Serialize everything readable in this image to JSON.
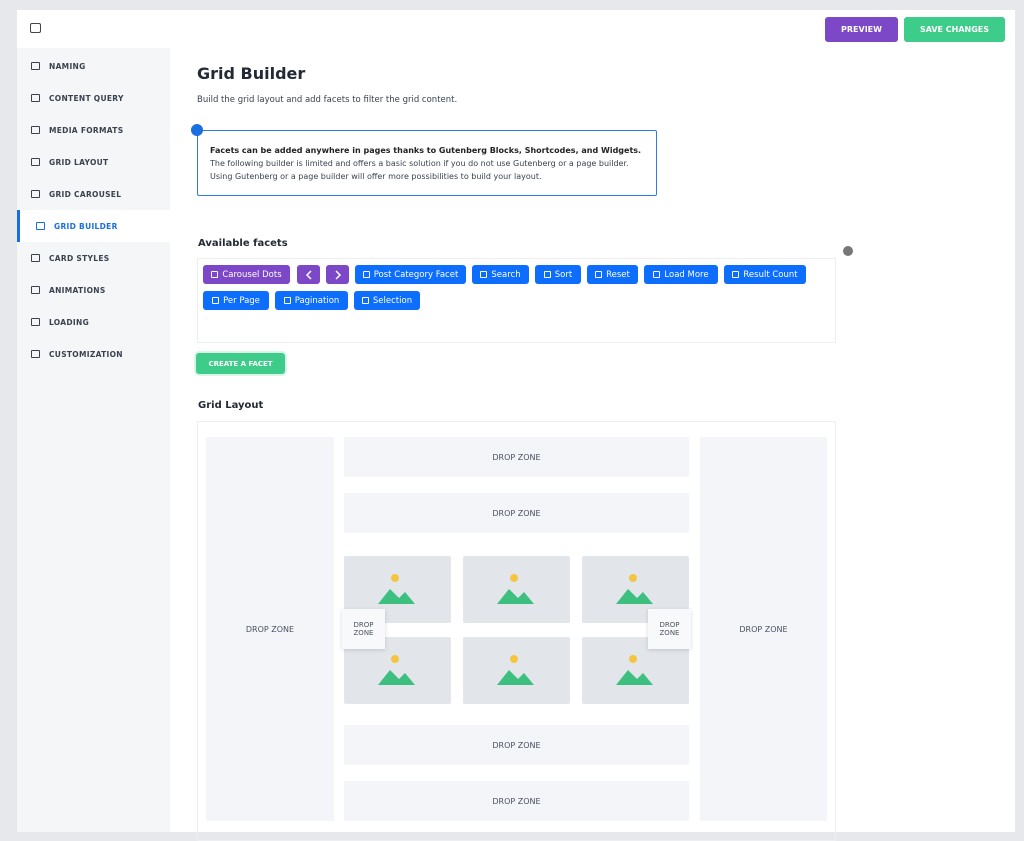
{
  "toolbar": {
    "preview": "PREVIEW",
    "save": "SAVE CHANGES"
  },
  "sidebar": {
    "items": [
      "NAMING",
      "CONTENT QUERY",
      "MEDIA FORMATS",
      "GRID LAYOUT",
      "GRID CAROUSEL",
      "GRID BUILDER",
      "CARD STYLES",
      "ANIMATIONS",
      "LOADING",
      "CUSTOMIZATION"
    ],
    "active": 5
  },
  "header": {
    "title": "Grid Builder",
    "subtitle": "Build the grid layout and add facets to filter the grid content."
  },
  "notice": {
    "bold": "Facets can be added anywhere in pages thanks to Gutenberg Blocks, Shortcodes, and Widgets.",
    "lines": [
      "The following builder is limited and offers a basic solution if you do not use Gutenberg or a page builder.",
      "Using Gutenberg or a page builder will offer more possibilities to build your layout."
    ]
  },
  "facets": {
    "title": "Available facets",
    "buttons": [
      "Carousel Dots",
      "Post Category Facet",
      "Search",
      "Sort",
      "Reset",
      "Load More",
      "Result Count",
      "Per Page",
      "Pagination",
      "Selection"
    ],
    "create": "CREATE A FACET"
  },
  "grid_layout": {
    "title": "Grid Layout",
    "zones": [
      "DROP ZONE",
      "DROP ZONE",
      "DROP ZONE",
      "DROP ZONE",
      "DROP ZONE",
      "DROP ZONE",
      "DROP ZONE",
      "DROP ZONE"
    ]
  }
}
